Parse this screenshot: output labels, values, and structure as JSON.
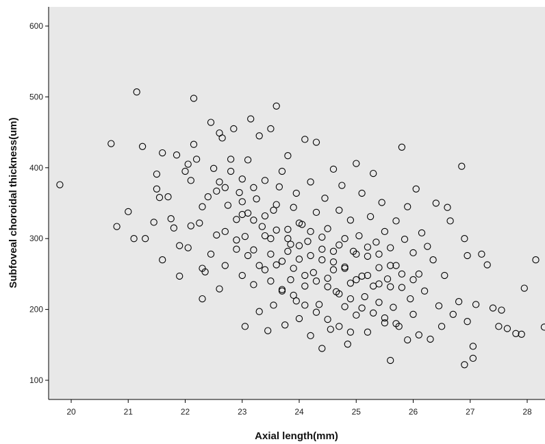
{
  "chart_data": {
    "type": "scatter",
    "xlabel": "Axial length(mm)",
    "ylabel": "Subfoveal choroidal thickness(um)",
    "xlim": [
      19.6,
      28.3
    ],
    "ylim": [
      70,
      620
    ],
    "x_ticks": [
      20,
      21,
      22,
      23,
      24,
      25,
      26,
      27,
      28
    ],
    "y_ticks": [
      100,
      200,
      300,
      400,
      500,
      600
    ],
    "grid": false,
    "legend": "none",
    "colors": {
      "plot_background": "#e8e8e8",
      "marker_stroke": "#000000",
      "axis": "#000000"
    },
    "marker": "open-circle",
    "series": [
      {
        "points": [
          [
            19.8,
            376
          ],
          [
            20.7,
            434
          ],
          [
            20.8,
            317
          ],
          [
            21.0,
            338
          ],
          [
            21.1,
            300
          ],
          [
            21.15,
            507
          ],
          [
            21.25,
            430
          ],
          [
            21.3,
            300
          ],
          [
            21.45,
            323
          ],
          [
            21.5,
            370
          ],
          [
            21.5,
            391
          ],
          [
            21.55,
            358
          ],
          [
            21.6,
            270
          ],
          [
            21.6,
            421
          ],
          [
            21.7,
            359
          ],
          [
            21.75,
            328
          ],
          [
            21.8,
            315
          ],
          [
            21.85,
            418
          ],
          [
            21.9,
            290
          ],
          [
            21.9,
            247
          ],
          [
            22.0,
            395
          ],
          [
            22.05,
            405
          ],
          [
            22.05,
            287
          ],
          [
            22.1,
            318
          ],
          [
            22.1,
            382
          ],
          [
            22.15,
            498
          ],
          [
            22.15,
            433
          ],
          [
            22.2,
            412
          ],
          [
            22.25,
            322
          ],
          [
            22.3,
            215
          ],
          [
            22.3,
            258
          ],
          [
            22.3,
            345
          ],
          [
            22.35,
            253
          ],
          [
            22.4,
            359
          ],
          [
            22.45,
            464
          ],
          [
            22.45,
            278
          ],
          [
            22.5,
            399
          ],
          [
            22.55,
            305
          ],
          [
            22.55,
            367
          ],
          [
            22.6,
            449
          ],
          [
            22.6,
            229
          ],
          [
            22.65,
            442
          ],
          [
            22.7,
            372
          ],
          [
            22.7,
            262
          ],
          [
            22.75,
            347
          ],
          [
            22.8,
            412
          ],
          [
            22.85,
            455
          ],
          [
            22.9,
            285
          ],
          [
            22.9,
            327
          ],
          [
            22.95,
            365
          ],
          [
            23.0,
            384
          ],
          [
            23.0,
            248
          ],
          [
            23.05,
            176
          ],
          [
            23.05,
            303
          ],
          [
            23.1,
            336
          ],
          [
            23.1,
            411
          ],
          [
            23.15,
            469
          ],
          [
            23.2,
            235
          ],
          [
            23.2,
            284
          ],
          [
            23.25,
            356
          ],
          [
            23.3,
            197
          ],
          [
            23.3,
            445
          ],
          [
            23.35,
            317
          ],
          [
            23.4,
            256
          ],
          [
            23.4,
            382
          ],
          [
            23.45,
            170
          ],
          [
            23.5,
            455
          ],
          [
            23.5,
            300
          ],
          [
            23.55,
            206
          ],
          [
            23.55,
            340
          ],
          [
            23.6,
            487
          ],
          [
            23.6,
            263
          ],
          [
            23.65,
            373
          ],
          [
            23.7,
            228
          ],
          [
            23.7,
            395
          ],
          [
            23.75,
            178
          ],
          [
            23.8,
            313
          ],
          [
            23.8,
            417
          ],
          [
            23.85,
            292
          ],
          [
            23.85,
            242
          ],
          [
            23.9,
            344
          ],
          [
            23.95,
            212
          ],
          [
            23.95,
            364
          ],
          [
            24.0,
            271
          ],
          [
            24.0,
            187
          ],
          [
            24.05,
            320
          ],
          [
            24.1,
            440
          ],
          [
            24.1,
            233
          ],
          [
            24.15,
            296
          ],
          [
            24.2,
            163
          ],
          [
            24.2,
            380
          ],
          [
            24.25,
            252
          ],
          [
            24.3,
            337
          ],
          [
            24.3,
            436
          ],
          [
            24.35,
            207
          ],
          [
            24.4,
            285
          ],
          [
            24.4,
            145
          ],
          [
            24.45,
            357
          ],
          [
            24.5,
            244
          ],
          [
            24.5,
            314
          ],
          [
            24.55,
            172
          ],
          [
            24.6,
            398
          ],
          [
            24.6,
            267
          ],
          [
            24.65,
            225
          ],
          [
            24.7,
            340
          ],
          [
            24.7,
            291
          ],
          [
            24.75,
            375
          ],
          [
            24.8,
            204
          ],
          [
            24.8,
            258
          ],
          [
            24.85,
            151
          ],
          [
            24.9,
            326
          ],
          [
            24.9,
            237
          ],
          [
            24.95,
            282
          ],
          [
            25.0,
            406
          ],
          [
            25.0,
            192
          ],
          [
            25.05,
            304
          ],
          [
            25.1,
            247
          ],
          [
            25.1,
            364
          ],
          [
            25.15,
            218
          ],
          [
            25.2,
            275
          ],
          [
            25.2,
            168
          ],
          [
            25.25,
            331
          ],
          [
            25.3,
            392
          ],
          [
            25.3,
            233
          ],
          [
            25.35,
            295
          ],
          [
            25.4,
            210
          ],
          [
            25.4,
            259
          ],
          [
            25.45,
            351
          ],
          [
            25.5,
            181
          ],
          [
            25.5,
            310
          ],
          [
            25.55,
            243
          ],
          [
            25.6,
            128
          ],
          [
            25.6,
            287
          ],
          [
            25.65,
            203
          ],
          [
            25.7,
            325
          ],
          [
            25.7,
            262
          ],
          [
            25.75,
            176
          ],
          [
            25.8,
            429
          ],
          [
            25.8,
            231
          ],
          [
            25.85,
            299
          ],
          [
            25.9,
            157
          ],
          [
            25.9,
            345
          ],
          [
            25.95,
            215
          ],
          [
            26.0,
            280
          ],
          [
            26.0,
            193
          ],
          [
            26.05,
            370
          ],
          [
            26.1,
            250
          ],
          [
            26.1,
            164
          ],
          [
            26.15,
            308
          ],
          [
            26.2,
            226
          ],
          [
            26.25,
            289
          ],
          [
            26.3,
            158
          ],
          [
            26.35,
            270
          ],
          [
            26.4,
            350
          ],
          [
            26.45,
            205
          ],
          [
            26.5,
            176
          ],
          [
            26.55,
            248
          ],
          [
            26.6,
            344
          ],
          [
            26.65,
            325
          ],
          [
            26.7,
            193
          ],
          [
            26.8,
            211
          ],
          [
            26.85,
            402
          ],
          [
            26.9,
            300
          ],
          [
            26.95,
            276
          ],
          [
            26.9,
            122
          ],
          [
            26.95,
            183
          ],
          [
            27.05,
            148
          ],
          [
            27.05,
            131
          ],
          [
            27.1,
            207
          ],
          [
            27.2,
            278
          ],
          [
            27.3,
            263
          ],
          [
            27.4,
            202
          ],
          [
            27.5,
            176
          ],
          [
            27.55,
            199
          ],
          [
            27.65,
            173
          ],
          [
            27.8,
            166
          ],
          [
            27.9,
            165
          ],
          [
            27.95,
            230
          ],
          [
            28.15,
            270
          ],
          [
            28.3,
            175
          ],
          [
            22.6,
            380
          ],
          [
            22.8,
            395
          ],
          [
            23.0,
            352
          ],
          [
            23.2,
            372
          ],
          [
            23.4,
            332
          ],
          [
            23.6,
            348
          ],
          [
            23.8,
            300
          ],
          [
            24.0,
            322
          ],
          [
            24.2,
            310
          ],
          [
            24.4,
            270
          ],
          [
            24.6,
            282
          ],
          [
            24.8,
            260
          ],
          [
            25.0,
            278
          ],
          [
            25.2,
            248
          ],
          [
            25.4,
            236
          ],
          [
            25.6,
            232
          ],
          [
            22.7,
            310
          ],
          [
            22.9,
            298
          ],
          [
            23.1,
            276
          ],
          [
            23.3,
            262
          ],
          [
            23.5,
            278
          ],
          [
            23.7,
            268
          ],
          [
            23.9,
            258
          ],
          [
            24.1,
            248
          ],
          [
            24.3,
            240
          ],
          [
            24.5,
            232
          ],
          [
            24.7,
            222
          ],
          [
            24.9,
            215
          ],
          [
            25.1,
            202
          ],
          [
            25.3,
            195
          ],
          [
            25.5,
            188
          ],
          [
            25.7,
            180
          ],
          [
            23.0,
            334
          ],
          [
            23.2,
            326
          ],
          [
            23.4,
            304
          ],
          [
            23.6,
            312
          ],
          [
            23.8,
            282
          ],
          [
            24.0,
            290
          ],
          [
            24.2,
            276
          ],
          [
            24.4,
            302
          ],
          [
            24.6,
            256
          ],
          [
            24.8,
            300
          ],
          [
            25.0,
            242
          ],
          [
            25.2,
            288
          ],
          [
            25.4,
            278
          ],
          [
            25.6,
            262
          ],
          [
            25.8,
            250
          ],
          [
            26.0,
            242
          ],
          [
            23.5,
            240
          ],
          [
            23.7,
            226
          ],
          [
            23.9,
            220
          ],
          [
            24.1,
            206
          ],
          [
            24.3,
            196
          ],
          [
            24.5,
            186
          ],
          [
            24.7,
            176
          ],
          [
            24.9,
            168
          ]
        ]
      }
    ]
  }
}
